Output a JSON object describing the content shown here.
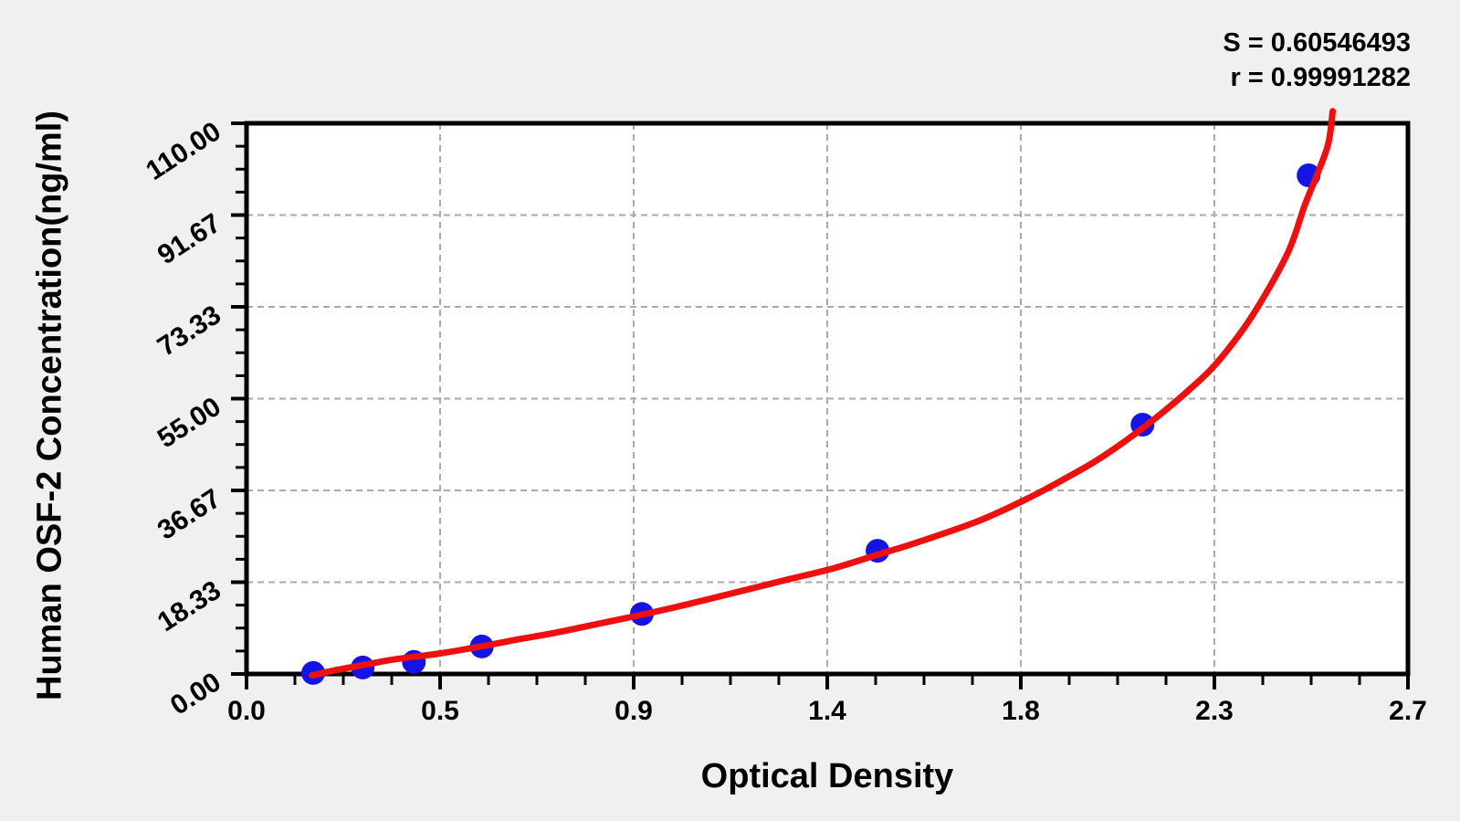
{
  "chart_data": {
    "type": "scatter",
    "title": "",
    "xlabel": "Optical Density",
    "ylabel": "Human OSF-2 Concentration(ng/ml)",
    "xlim": [
      0,
      2.7
    ],
    "ylim": [
      0,
      110
    ],
    "x_ticks": {
      "values": [
        0,
        0.45,
        0.9,
        1.35,
        1.8,
        2.25,
        2.7
      ],
      "labels": [
        "0.0",
        "0.5",
        "0.9",
        "1.4",
        "1.8",
        "2.3",
        "2.7"
      ],
      "minor_divisions": 4
    },
    "y_ticks": {
      "values": [
        0,
        18.333,
        36.667,
        55,
        73.333,
        91.667,
        110
      ],
      "labels": [
        "0.00",
        "18.33",
        "36.67",
        "55.00",
        "73.33",
        "91.67",
        "110.00"
      ],
      "minor_divisions": 4
    },
    "grid": {
      "style": "dashed",
      "at": "major-ticks"
    },
    "legend": null,
    "stats": {
      "s": "S = 0.60546493",
      "r": "r = 0.99991282",
      "s_value": 0.60546493,
      "r_value": 0.99991282
    },
    "series": [
      {
        "name": "standard-points",
        "type": "scatter",
        "points_od_conc": [
          [
            0.155,
            0.2
          ],
          [
            0.27,
            1.3
          ],
          [
            0.389,
            2.4
          ],
          [
            0.547,
            5.5
          ],
          [
            0.919,
            12.0
          ],
          [
            1.467,
            24.6
          ],
          [
            2.083,
            49.8
          ],
          [
            2.469,
            99.6
          ]
        ]
      },
      {
        "name": "fitted-standard-curve",
        "type": "line",
        "points_od_conc": [
          [
            0.152,
            -0.3
          ],
          [
            0.21,
            0.8
          ],
          [
            0.278,
            1.9
          ],
          [
            0.35,
            3.0
          ],
          [
            0.45,
            4.1
          ],
          [
            0.557,
            5.7
          ],
          [
            0.63,
            6.9
          ],
          [
            0.71,
            8.1
          ],
          [
            0.8,
            9.7
          ],
          [
            0.9,
            11.5
          ],
          [
            1.0,
            13.4
          ],
          [
            1.11,
            15.7
          ],
          [
            1.25,
            18.7
          ],
          [
            1.36,
            21.0
          ],
          [
            1.47,
            23.9
          ],
          [
            1.56,
            26.3
          ],
          [
            1.7,
            30.5
          ],
          [
            1.81,
            34.8
          ],
          [
            1.9,
            38.9
          ],
          [
            1.99,
            43.4
          ],
          [
            2.1,
            50.2
          ],
          [
            2.21,
            58.2
          ],
          [
            2.27,
            63.6
          ],
          [
            2.34,
            71.8
          ],
          [
            2.42,
            84.0
          ],
          [
            2.46,
            93.6
          ],
          [
            2.49,
            100.0
          ],
          [
            2.515,
            106.0
          ],
          [
            2.525,
            112.4
          ]
        ]
      }
    ],
    "colors": {
      "curve": "#ee0f0f",
      "points": "#1414e6",
      "grid": "#aaaaaa",
      "frame": "#000000",
      "plot_bg": "#ffffff",
      "page_bg": "#f0f0f0",
      "text": "#000000"
    }
  }
}
